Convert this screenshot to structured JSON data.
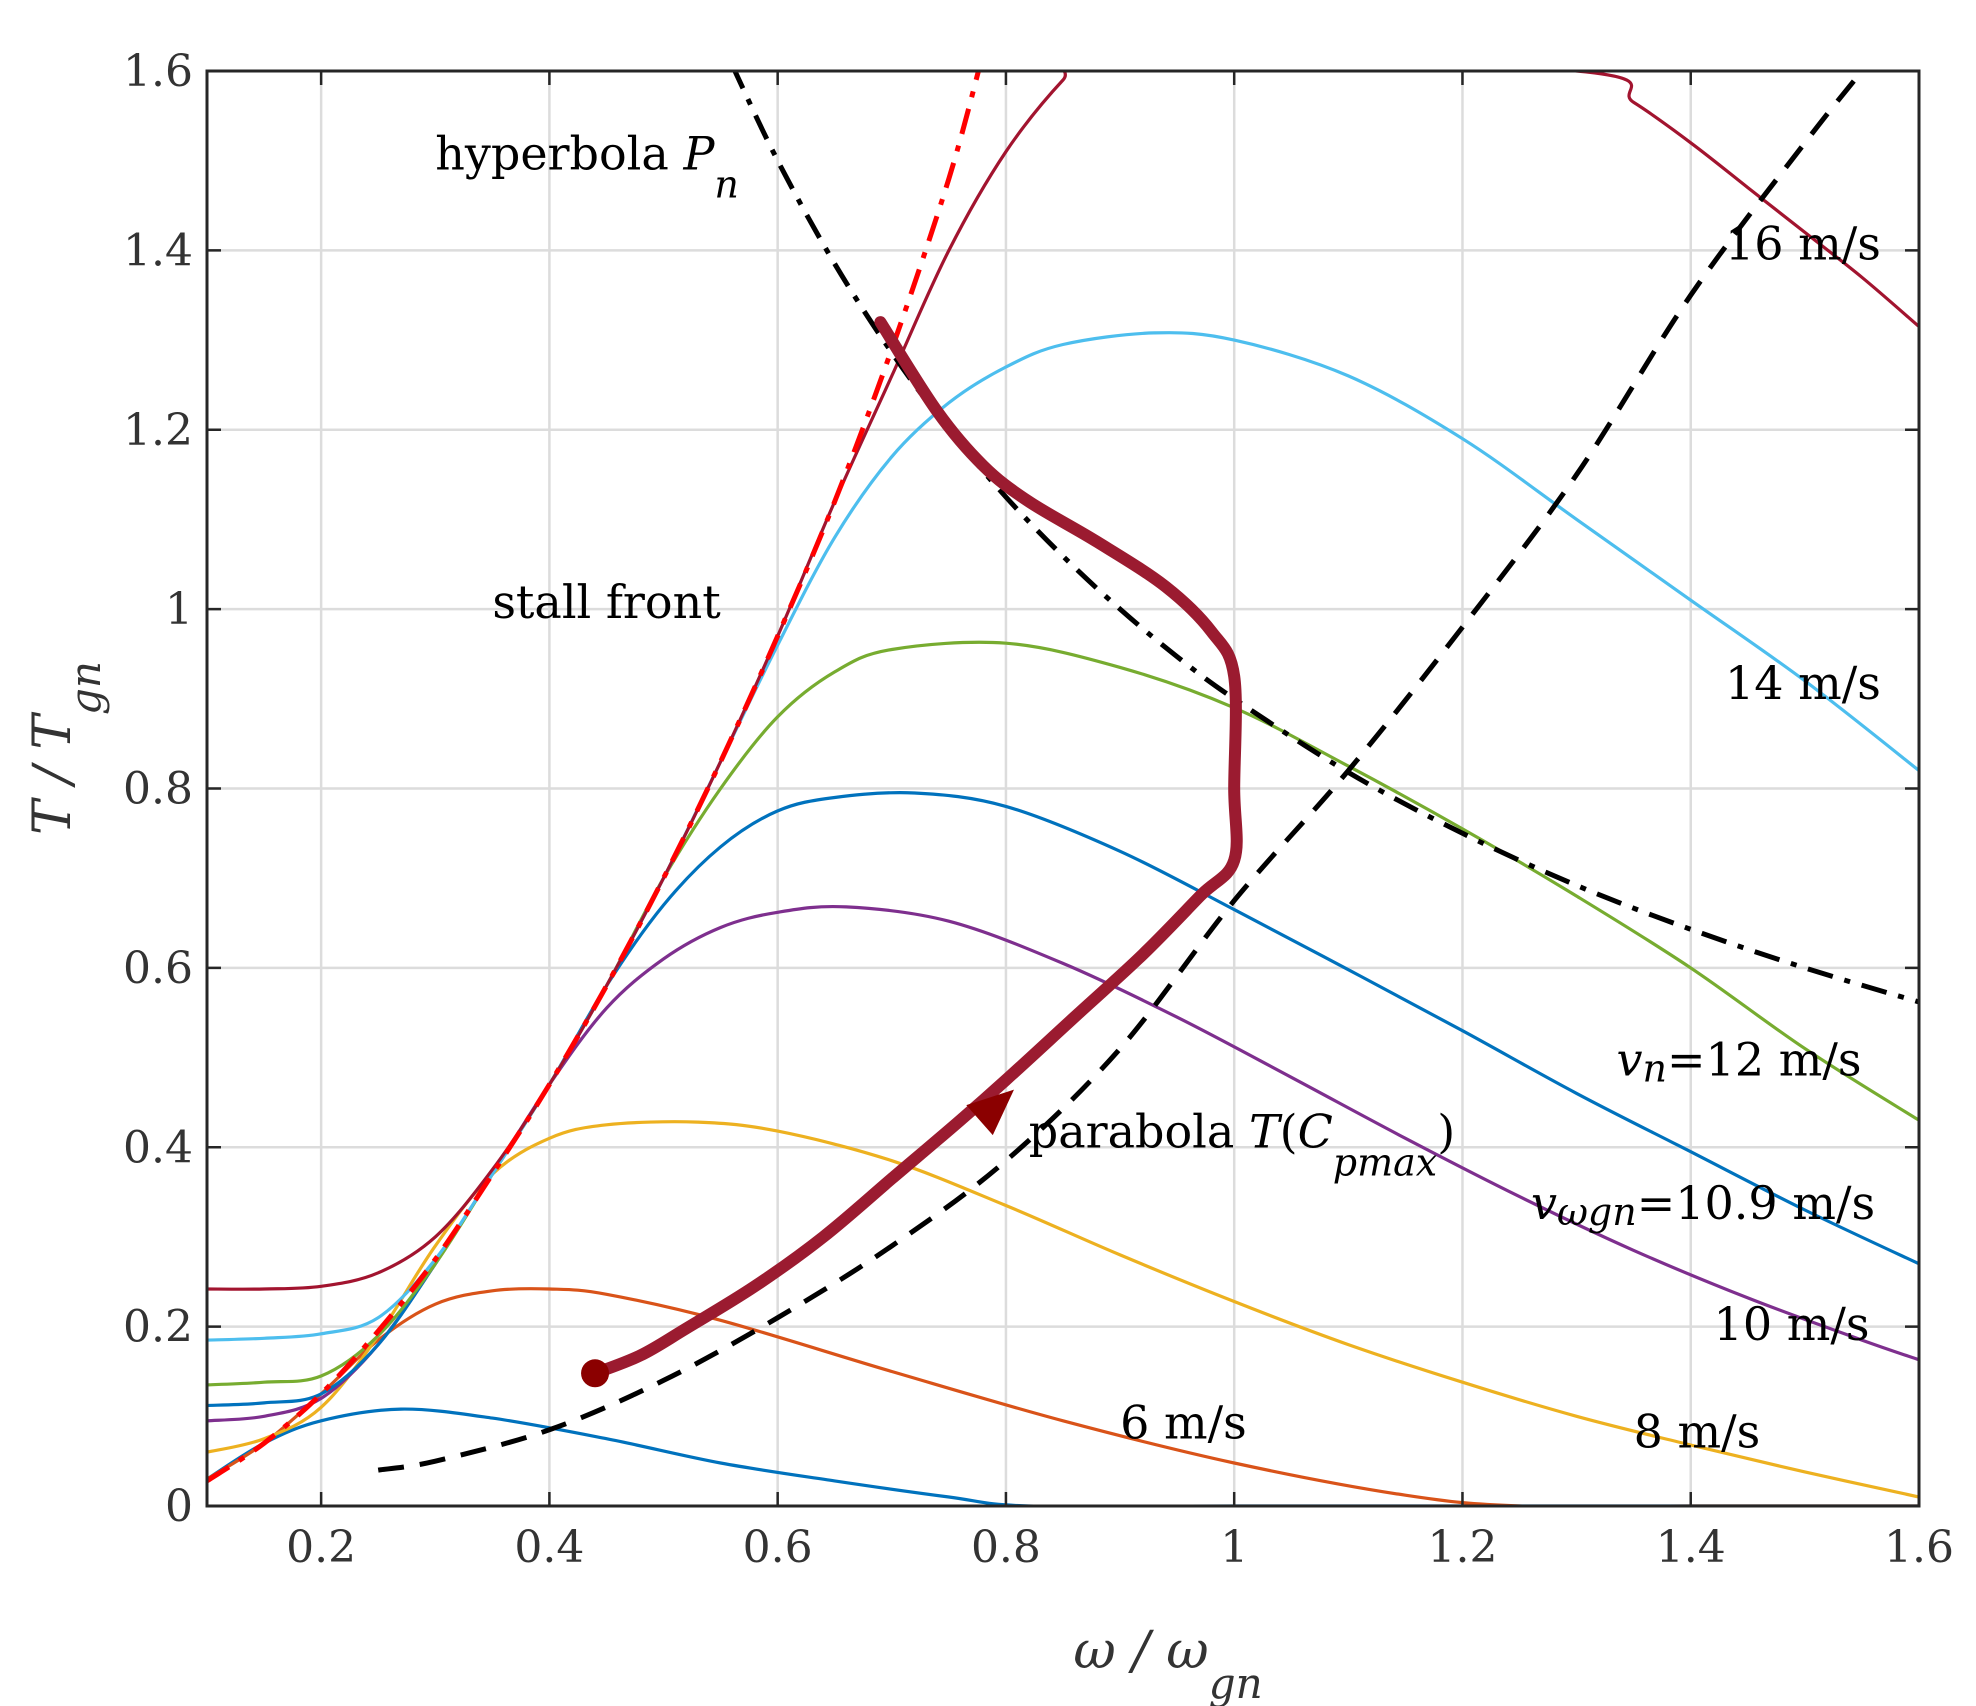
{
  "chart_data": {
    "type": "line",
    "xlabel": {
      "main": "ω / ω",
      "sub": "gn"
    },
    "ylabel": {
      "main": "T / T",
      "sub": "gn"
    },
    "xlim": [
      0.1,
      1.6
    ],
    "ylim": [
      0,
      1.6
    ],
    "x_ticks": [
      0.2,
      0.4,
      0.6,
      0.8,
      1,
      1.2,
      1.4,
      1.6
    ],
    "y_ticks": [
      0,
      0.2,
      0.4,
      0.6,
      0.8,
      1,
      1.2,
      1.4,
      1.6
    ],
    "x_tick_labels": [
      "0.2",
      "0.4",
      "0.6",
      "0.8",
      "1",
      "1.2",
      "1.4",
      "1.6"
    ],
    "y_tick_labels": [
      "0",
      "0.2",
      "0.4",
      "0.6",
      "0.8",
      "1",
      "1.2",
      "1.4",
      "1.6"
    ],
    "grid": true,
    "series": [
      {
        "label": "6 m/s",
        "color": "#0072BD",
        "x": [
          0.1,
          0.15,
          0.2,
          0.27,
          0.35,
          0.45,
          0.55,
          0.65,
          0.75,
          0.82,
          1.0,
          1.6
        ],
        "y": [
          0.03,
          0.07,
          0.095,
          0.108,
          0.098,
          0.075,
          0.048,
          0.028,
          0.01,
          0.0,
          0.0,
          0.0
        ]
      },
      {
        "label": "8 m/s",
        "color": "#D95319",
        "x": [
          0.1,
          0.15,
          0.2,
          0.25,
          0.3,
          0.35,
          0.4,
          0.45,
          0.55,
          0.7,
          0.85,
          1.0,
          1.15,
          1.25,
          1.4,
          1.6
        ],
        "y": [
          0.03,
          0.07,
          0.125,
          0.185,
          0.225,
          0.24,
          0.242,
          0.236,
          0.207,
          0.15,
          0.095,
          0.048,
          0.012,
          0.0,
          0.0,
          0.0
        ]
      },
      {
        "label": "8 m/s",
        "color": "#EDB120",
        "x": [
          0.1,
          0.15,
          0.2,
          0.25,
          0.3,
          0.35,
          0.4,
          0.45,
          0.53,
          0.6,
          0.7,
          0.8,
          0.9,
          1.0,
          1.1,
          1.2,
          1.3,
          1.4,
          1.5,
          1.6
        ],
        "y": [
          0.06,
          0.075,
          0.11,
          0.19,
          0.29,
          0.37,
          0.41,
          0.425,
          0.428,
          0.418,
          0.385,
          0.335,
          0.28,
          0.228,
          0.18,
          0.138,
          0.1,
          0.068,
          0.038,
          0.01
        ]
      },
      {
        "label": "10 m/s",
        "color": "#7E2F8E",
        "x": [
          0.1,
          0.15,
          0.2,
          0.25,
          0.3,
          0.35,
          0.4,
          0.45,
          0.5,
          0.55,
          0.6,
          0.66,
          0.75,
          0.85,
          0.95,
          1.05,
          1.15,
          1.25,
          1.35,
          1.45,
          1.55,
          1.6
        ],
        "y": [
          0.095,
          0.1,
          0.12,
          0.18,
          0.27,
          0.37,
          0.47,
          0.555,
          0.61,
          0.645,
          0.662,
          0.668,
          0.652,
          0.605,
          0.545,
          0.478,
          0.41,
          0.345,
          0.285,
          0.232,
          0.185,
          0.163
        ]
      },
      {
        "label": "v_ωgn=10.9 m/s",
        "color": "#0072BD",
        "x": [
          0.1,
          0.15,
          0.2,
          0.25,
          0.3,
          0.35,
          0.4,
          0.45,
          0.5,
          0.55,
          0.6,
          0.65,
          0.72,
          0.8,
          0.9,
          1.0,
          1.1,
          1.2,
          1.3,
          1.4,
          1.5,
          1.6
        ],
        "y": [
          0.112,
          0.115,
          0.125,
          0.18,
          0.27,
          0.37,
          0.47,
          0.58,
          0.67,
          0.735,
          0.775,
          0.79,
          0.795,
          0.78,
          0.73,
          0.665,
          0.598,
          0.53,
          0.46,
          0.395,
          0.33,
          0.27
        ]
      },
      {
        "label": "v_n=12 m/s",
        "color": "#77AC30",
        "x": [
          0.1,
          0.15,
          0.2,
          0.25,
          0.3,
          0.35,
          0.4,
          0.45,
          0.5,
          0.55,
          0.6,
          0.65,
          0.7,
          0.8,
          0.9,
          1.0,
          1.1,
          1.2,
          1.3,
          1.4,
          1.5,
          1.6
        ],
        "y": [
          0.135,
          0.138,
          0.145,
          0.19,
          0.27,
          0.37,
          0.47,
          0.58,
          0.7,
          0.8,
          0.88,
          0.93,
          0.955,
          0.962,
          0.935,
          0.89,
          0.825,
          0.755,
          0.68,
          0.6,
          0.51,
          0.43
        ]
      },
      {
        "label": "14 m/s",
        "color": "#4DBEEE",
        "x": [
          0.1,
          0.15,
          0.2,
          0.25,
          0.3,
          0.35,
          0.4,
          0.45,
          0.5,
          0.55,
          0.6,
          0.65,
          0.7,
          0.75,
          0.8,
          0.85,
          0.93,
          1.0,
          1.1,
          1.2,
          1.3,
          1.4,
          1.5,
          1.6
        ],
        "y": [
          0.185,
          0.187,
          0.192,
          0.21,
          0.275,
          0.37,
          0.47,
          0.58,
          0.7,
          0.83,
          0.96,
          1.08,
          1.17,
          1.23,
          1.27,
          1.295,
          1.308,
          1.3,
          1.26,
          1.19,
          1.1,
          1.01,
          0.92,
          0.82
        ]
      },
      {
        "label": "16 m/s",
        "color": "#A2142F",
        "x": [
          0.1,
          0.15,
          0.2,
          0.25,
          0.3,
          0.35,
          0.4,
          0.45,
          0.5,
          0.55,
          0.6,
          0.65,
          0.7,
          0.75,
          0.8,
          0.85,
          0.88,
          1.3,
          1.35,
          1.4,
          1.45,
          1.5,
          1.55,
          1.6
        ],
        "y": [
          0.242,
          0.242,
          0.245,
          0.26,
          0.3,
          0.375,
          0.47,
          0.58,
          0.7,
          0.83,
          0.97,
          1.12,
          1.26,
          1.4,
          1.51,
          1.59,
          1.62,
          1.6,
          1.565,
          1.52,
          1.47,
          1.42,
          1.37,
          1.315
        ]
      }
    ],
    "reference_curves": [
      {
        "name": "stall front",
        "color": "#FF0000",
        "style": "dash-dot",
        "x": [
          0.1,
          0.15,
          0.2,
          0.25,
          0.3,
          0.35,
          0.4,
          0.45,
          0.5,
          0.55,
          0.6,
          0.65,
          0.7,
          0.75,
          0.78
        ],
        "y": [
          0.028,
          0.07,
          0.125,
          0.195,
          0.275,
          0.37,
          0.47,
          0.58,
          0.7,
          0.83,
          0.97,
          1.12,
          1.29,
          1.48,
          1.62
        ]
      },
      {
        "name": "hyperbola P_n",
        "color": "#000000",
        "style": "dash-dot",
        "x": [
          0.56,
          0.6,
          0.65,
          0.7,
          0.75,
          0.8,
          0.85,
          0.9,
          0.95,
          1.0,
          1.1,
          1.2,
          1.3,
          1.4,
          1.5,
          1.6
        ],
        "y": [
          1.607,
          1.5,
          1.385,
          1.286,
          1.2,
          1.125,
          1.059,
          1.0,
          0.947,
          0.9,
          0.818,
          0.75,
          0.692,
          0.643,
          0.6,
          0.562
        ]
      },
      {
        "name": "parabola T(C_pmax)",
        "color": "#000000",
        "style": "dash",
        "x": [
          0.25,
          0.3,
          0.4,
          0.5,
          0.6,
          0.7,
          0.8,
          0.9,
          1.0,
          1.1,
          1.2,
          1.3,
          1.4,
          1.5,
          1.55
        ],
        "y": [
          0.04,
          0.05,
          0.085,
          0.14,
          0.21,
          0.29,
          0.385,
          0.51,
          0.675,
          0.82,
          0.98,
          1.15,
          1.35,
          1.52,
          1.6
        ]
      }
    ],
    "trajectory": {
      "color": "#9B1B30",
      "x": [
        0.44,
        0.48,
        0.52,
        0.58,
        0.64,
        0.7,
        0.76,
        0.8,
        0.86,
        0.92,
        0.97,
        1.0,
        1.0,
        1.0,
        0.98,
        0.94,
        0.88,
        0.82,
        0.78,
        0.74,
        0.69
      ],
      "y": [
        0.148,
        0.168,
        0.198,
        0.245,
        0.3,
        0.365,
        0.43,
        0.475,
        0.545,
        0.615,
        0.68,
        0.72,
        0.8,
        0.925,
        0.975,
        1.025,
        1.075,
        1.12,
        1.16,
        1.22,
        1.32
      ],
      "arrow_at": [
        0.79,
        0.445
      ]
    },
    "annotations": [
      {
        "id": "hyperbola",
        "text": "hyperbola ",
        "it": "P",
        "sub": "n",
        "x": 0.3,
        "y": 1.49
      },
      {
        "id": "stall",
        "text": "stall front",
        "x": 0.35,
        "y": 0.99
      },
      {
        "id": "parabola",
        "text": "parabola ",
        "it": "T",
        "mid": "(",
        "it2": "C",
        "sub": "pmax",
        "end": ")",
        "x": 0.82,
        "y": 0.4
      },
      {
        "id": "v16",
        "text": "16 m/s",
        "x": 1.43,
        "y": 1.39
      },
      {
        "id": "v14",
        "text": "14 m/s",
        "x": 1.43,
        "y": 0.9
      },
      {
        "id": "v12",
        "it": "v",
        "sub": "n",
        "text": "=12 m/s",
        "x": 1.335,
        "y": 0.48
      },
      {
        "id": "v109",
        "it": "v",
        "sub": "ωgn",
        "text": "=10.9 m/s",
        "x": 1.26,
        "y": 0.32
      },
      {
        "id": "v10",
        "text": "10 m/s",
        "x": 1.42,
        "y": 0.185
      },
      {
        "id": "v8",
        "text": "8 m/s",
        "x": 1.35,
        "y": 0.065
      },
      {
        "id": "v6",
        "text": "6 m/s",
        "x": 0.9,
        "y": 0.075
      }
    ]
  }
}
